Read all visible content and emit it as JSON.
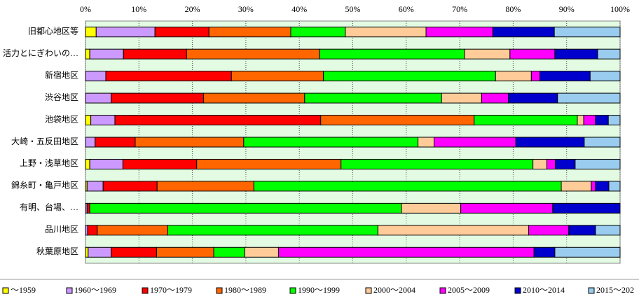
{
  "chart_data": {
    "type": "stacked-bar-horizontal",
    "categories": [
      "旧都心地区等",
      "活力とにぎわいの…",
      "新宿地区",
      "渋谷地区",
      "池袋地区",
      "大崎・五反田地区",
      "上野・浅草地区",
      "錦糸町・亀戸地区",
      "有明、台場、…",
      "品川地区",
      "秋葉原地区"
    ],
    "xlim": [
      0,
      100
    ],
    "xticks": [
      {
        "value": 0,
        "label": "0%"
      },
      {
        "value": 10,
        "label": "10%"
      },
      {
        "value": 20,
        "label": "20%"
      },
      {
        "value": 30,
        "label": "30%"
      },
      {
        "value": 40,
        "label": "40%"
      },
      {
        "value": 50,
        "label": "50%"
      },
      {
        "value": 60,
        "label": "60%"
      },
      {
        "value": 70,
        "label": "70%"
      },
      {
        "value": 80,
        "label": "80%"
      },
      {
        "value": 90,
        "label": "90%"
      },
      {
        "value": 100,
        "label": "100%"
      }
    ],
    "grid": true,
    "legend": "bottom",
    "series": [
      {
        "name": "～1959",
        "color": "#ffff00",
        "values": [
          2.0,
          0.8,
          0,
          0,
          1.0,
          0,
          0.8,
          0.3,
          0,
          0,
          0.5
        ]
      },
      {
        "name": "1960～1969",
        "color": "#cc99ff",
        "values": [
          11.0,
          6.3,
          3.8,
          4.8,
          4.5,
          1.8,
          6.2,
          3.0,
          0.3,
          0.4,
          4.3
        ]
      },
      {
        "name": "1970～1979",
        "color": "#ff0000",
        "values": [
          10.1,
          11.8,
          23.5,
          17.3,
          38.5,
          7.5,
          13.8,
          10.1,
          0.5,
          1.8,
          8.5
        ]
      },
      {
        "name": "1980～1989",
        "color": "#ff6600",
        "values": [
          15.3,
          24.9,
          17.2,
          18.9,
          28.7,
          20.3,
          27.0,
          18.1,
          0,
          13.2,
          10.7
        ]
      },
      {
        "name": "1990～1999",
        "color": "#00ff00",
        "values": [
          10.2,
          27.1,
          32.2,
          25.6,
          19.3,
          32.6,
          35.9,
          57.5,
          58.3,
          39.3,
          5.8
        ]
      },
      {
        "name": "2000～2004",
        "color": "#ffcc99",
        "values": [
          15.1,
          8.5,
          6.7,
          7.5,
          1.2,
          3.0,
          2.6,
          5.6,
          11.1,
          28.2,
          6.3
        ]
      },
      {
        "name": "2005～2009",
        "color": "#ff00ff",
        "values": [
          12.5,
          8.4,
          1.6,
          5.0,
          2.2,
          15.3,
          1.6,
          0.8,
          17.2,
          7.5,
          47.8
        ]
      },
      {
        "name": "2010～2014",
        "color": "#0000cc",
        "values": [
          11.5,
          8.0,
          9.4,
          9.2,
          2.4,
          12.8,
          3.7,
          2.5,
          12.6,
          5.0,
          3.9
        ]
      },
      {
        "name": "2015～202",
        "color": "#99ccee",
        "values": [
          12.3,
          4.2,
          5.6,
          11.7,
          2.2,
          6.7,
          8.4,
          2.1,
          0,
          4.6,
          12.2
        ]
      }
    ]
  }
}
